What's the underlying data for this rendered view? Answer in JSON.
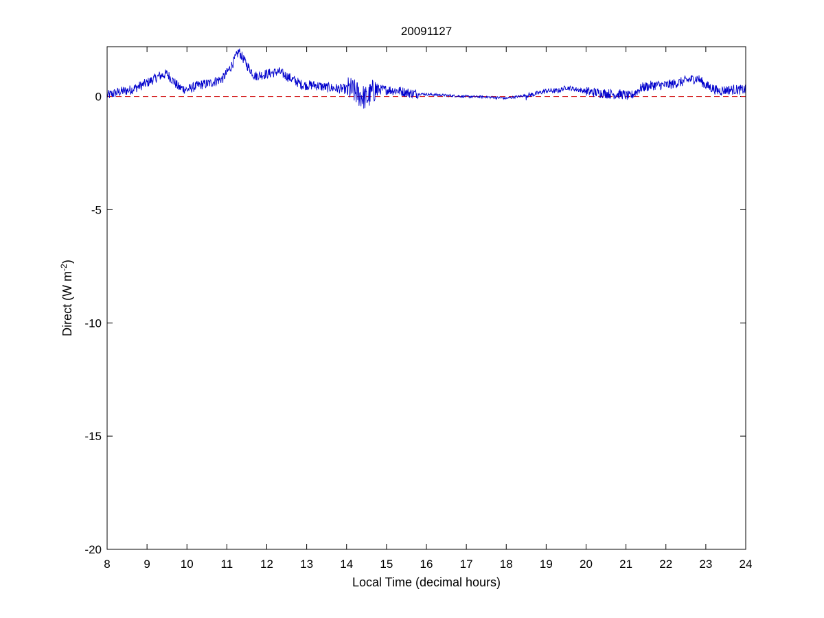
{
  "chart_data": {
    "type": "line",
    "title": "20091127",
    "xlabel": "Local Time (decimal hours)",
    "ylabel_main": "Direct (W m",
    "ylabel_sup": "-2",
    "ylabel_tail": ")",
    "xlim": [
      8,
      24
    ],
    "ylim": [
      -20,
      2.2
    ],
    "x_ticks": [
      8,
      9,
      10,
      11,
      12,
      13,
      14,
      15,
      16,
      17,
      18,
      19,
      20,
      21,
      22,
      23,
      24
    ],
    "y_ticks": [
      0,
      -5,
      -10,
      -15,
      -20
    ],
    "grid": false,
    "reference_line": {
      "y": 0,
      "style": "dashed",
      "color": "#d62728"
    },
    "series": [
      {
        "color": "#0000cc",
        "noise": 0.22,
        "x": [
          8.0,
          8.3,
          8.6,
          9.0,
          9.3,
          9.5,
          9.8,
          10.0,
          10.3,
          10.6,
          10.9,
          11.1,
          11.3,
          11.5,
          11.7,
          12.0,
          12.3,
          12.6,
          12.9,
          13.2,
          13.5,
          13.8,
          14.1,
          14.3,
          14.5,
          14.7,
          15.0,
          15.3,
          15.6,
          16.0,
          16.5,
          17.0,
          17.5,
          18.0,
          18.3,
          18.7,
          19.0,
          19.3,
          19.5,
          19.8,
          20.1,
          20.4,
          20.7,
          20.9,
          21.1,
          21.4,
          21.7,
          22.0,
          22.3,
          22.6,
          22.8,
          23.0,
          23.3,
          23.6,
          24.0
        ],
        "y": [
          0.05,
          0.2,
          0.3,
          0.6,
          0.9,
          1.0,
          0.4,
          0.3,
          0.5,
          0.6,
          0.8,
          1.3,
          2.0,
          1.4,
          0.9,
          1.0,
          1.1,
          0.8,
          0.5,
          0.5,
          0.4,
          0.35,
          0.3,
          0.1,
          -0.1,
          0.3,
          0.3,
          0.25,
          0.15,
          0.1,
          0.05,
          0.0,
          -0.02,
          -0.08,
          0.0,
          0.1,
          0.25,
          0.25,
          0.4,
          0.3,
          0.2,
          0.15,
          0.1,
          0.1,
          0.0,
          0.4,
          0.5,
          0.5,
          0.6,
          0.75,
          0.8,
          0.5,
          0.25,
          0.3,
          0.3
        ]
      }
    ]
  }
}
